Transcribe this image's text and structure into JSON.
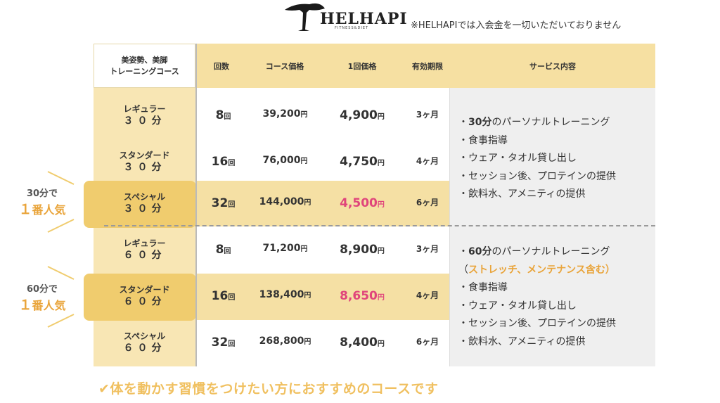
{
  "brand": {
    "name": "HELHAPI",
    "tagline": "FITNESS&DIET"
  },
  "note": "※HELHAPIでは入会金を一切いただいておりません",
  "table": {
    "headers": {
      "course": "美姿勢、美脚\nトレーニングコース",
      "count": "回数",
      "course_price": "コース価格",
      "per_price": "1回価格",
      "expiry": "有効期限",
      "service": "サービス内容"
    },
    "rows": [
      {
        "name": "レギュラー",
        "duration": "３０分",
        "count": "8",
        "count_unit": "回",
        "price": "39,200",
        "price_unit": "円",
        "per": "4,900",
        "per_unit": "円",
        "expiry": "3ヶ月"
      },
      {
        "name": "スタンダード",
        "duration": "３０分",
        "count": "16",
        "count_unit": "回",
        "price": "76,000",
        "price_unit": "円",
        "per": "4,750",
        "per_unit": "円",
        "expiry": "4ヶ月"
      },
      {
        "name": "スペシャル",
        "duration": "３０分",
        "count": "32",
        "count_unit": "回",
        "price": "144,000",
        "price_unit": "円",
        "per": "4,500",
        "per_unit": "円",
        "expiry": "6ヶ月"
      },
      {
        "name": "レギュラー",
        "duration": "６０分",
        "count": "8",
        "count_unit": "回",
        "price": "71,200",
        "price_unit": "円",
        "per": "8,900",
        "per_unit": "円",
        "expiry": "3ヶ月"
      },
      {
        "name": "スタンダード",
        "duration": "６０分",
        "count": "16",
        "count_unit": "回",
        "price": "138,400",
        "price_unit": "円",
        "per": "8,650",
        "per_unit": "円",
        "expiry": "4ヶ月"
      },
      {
        "name": "スペシャル",
        "duration": "６０分",
        "count": "32",
        "count_unit": "回",
        "price": "268,800",
        "price_unit": "円",
        "per": "8,400",
        "per_unit": "円",
        "expiry": "6ヶ月"
      }
    ],
    "services_30": {
      "first_bold": "30分",
      "first_rest": "のパーソナルトレーニング",
      "items": [
        "食事指導",
        "ウェア・タオル貸し出し",
        "セッション後、プロテインの提供",
        "飲料水、アメニティの提供"
      ]
    },
    "services_60": {
      "first_bold": "60分",
      "first_rest": "のパーソナルトレーニング",
      "note_open": "（",
      "note": "ストレッチ、メンテナンス含む",
      "note_close": "）",
      "items": [
        "食事指導",
        "ウェア・タオル貸し出し",
        "セッション後、プロテインの提供",
        "飲料水、アメニティの提供"
      ]
    }
  },
  "popular": [
    {
      "top": "30分で",
      "num": "１",
      "label": "番人気"
    },
    {
      "top": "60分で",
      "num": "１",
      "label": "番人気"
    }
  ],
  "bullet": "・",
  "footer": "✔体を動かす習慣をつけたい方におすすめのコースです",
  "colors": {
    "header": "#f6e0a2",
    "left": "#f8e6b4",
    "highlight": "#f0cc6e",
    "pink": "#e0457b",
    "orange": "#e9a43a"
  }
}
